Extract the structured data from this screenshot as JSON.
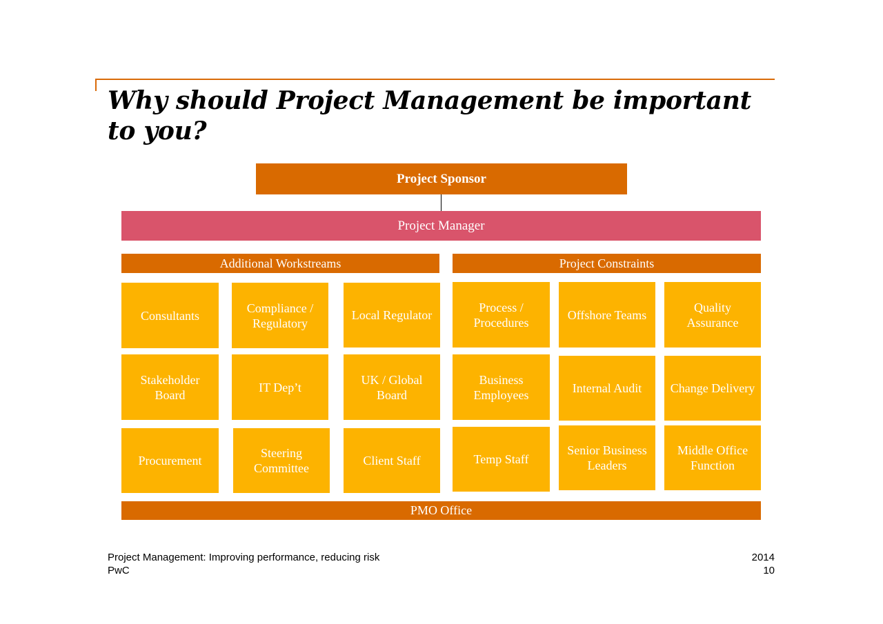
{
  "slide": {
    "title": "Why should Project Management be important to you?"
  },
  "org_chart": {
    "sponsor": "Project Sponsor",
    "manager": "Project Manager",
    "workstreams": {
      "header": "Additional Workstreams",
      "tiles": [
        "Consultants",
        "Compliance / Regulatory",
        "Local Regulator",
        "Stakeholder Board",
        "IT Dep’t",
        "UK / Global Board",
        "Procurement",
        "Steering Committee",
        "Client Staff"
      ]
    },
    "constraints": {
      "header": "Project Constraints",
      "tiles": [
        "Process / Procedures",
        "Offshore Teams",
        "Quality Assurance",
        "Business Employees",
        "Internal Audit",
        "Change Delivery",
        "Temp Staff",
        "Senior Business Leaders",
        "Middle Office Function"
      ]
    },
    "pmo": "PMO Office"
  },
  "footer": {
    "subtitle": "Project Management: Improving performance, reducing risk",
    "company": "PwC",
    "year": "2014",
    "page_number": "10"
  },
  "colors": {
    "sponsor": "#d96a00",
    "manager": "#d9546b",
    "tile": "#fdb300",
    "accent_line": "#d96a08"
  }
}
